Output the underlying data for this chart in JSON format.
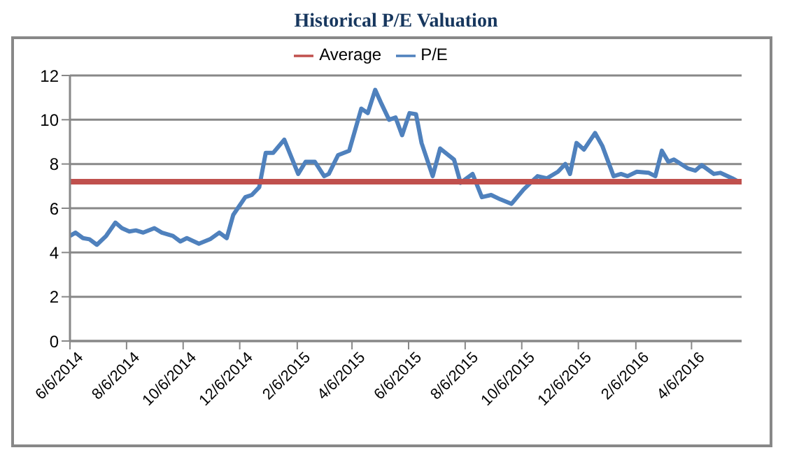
{
  "chart_data": {
    "type": "line",
    "title": "Historical P/E Valuation",
    "xlim": [
      "2014-06-06",
      "2016-05-30"
    ],
    "xticks": [
      {
        "value": "2014-06-06",
        "label": "6/6/2014"
      },
      {
        "value": "2014-08-06",
        "label": "8/6/2014"
      },
      {
        "value": "2014-10-06",
        "label": "10/6/2014"
      },
      {
        "value": "2014-12-06",
        "label": "12/6/2014"
      },
      {
        "value": "2015-02-06",
        "label": "2/6/2015"
      },
      {
        "value": "2015-04-06",
        "label": "4/6/2015"
      },
      {
        "value": "2015-06-06",
        "label": "6/6/2015"
      },
      {
        "value": "2015-08-06",
        "label": "8/6/2015"
      },
      {
        "value": "2015-10-06",
        "label": "10/6/2015"
      },
      {
        "value": "2015-12-06",
        "label": "12/6/2015"
      },
      {
        "value": "2016-02-06",
        "label": "2/6/2016"
      },
      {
        "value": "2016-04-06",
        "label": "4/6/2016"
      }
    ],
    "ylim": [
      0,
      12
    ],
    "yticks": [
      0,
      2,
      4,
      6,
      8,
      10,
      12
    ],
    "grid": "y",
    "legend": "top",
    "line_style": "solid",
    "marker": "none",
    "series": [
      {
        "name": "P/E",
        "color": "#4f81bd",
        "x": [
          "2014-06-06",
          "2014-06-12",
          "2014-06-20",
          "2014-06-27",
          "2014-07-05",
          "2014-07-15",
          "2014-07-25",
          "2014-08-01",
          "2014-08-09",
          "2014-08-16",
          "2014-08-24",
          "2014-09-05",
          "2014-09-13",
          "2014-09-25",
          "2014-10-03",
          "2014-10-10",
          "2014-10-23",
          "2014-11-04",
          "2014-11-14",
          "2014-11-22",
          "2014-11-29",
          "2014-12-12",
          "2014-12-19",
          "2014-12-27",
          "2015-01-03",
          "2015-01-11",
          "2015-01-23",
          "2015-02-07",
          "2015-02-15",
          "2015-02-25",
          "2015-03-07",
          "2015-03-12",
          "2015-03-22",
          "2015-04-03",
          "2015-04-16",
          "2015-04-23",
          "2015-05-01",
          "2015-05-08",
          "2015-05-16",
          "2015-05-23",
          "2015-05-30",
          "2015-06-07",
          "2015-06-14",
          "2015-06-20",
          "2015-07-02",
          "2015-07-10",
          "2015-07-25",
          "2015-08-01",
          "2015-08-14",
          "2015-08-24",
          "2015-09-03",
          "2015-09-13",
          "2015-09-25",
          "2015-10-08",
          "2015-10-23",
          "2015-11-02",
          "2015-11-14",
          "2015-11-22",
          "2015-11-27",
          "2015-12-04",
          "2015-12-12",
          "2015-12-24",
          "2016-01-01",
          "2016-01-13",
          "2016-01-21",
          "2016-01-28",
          "2016-02-07",
          "2016-02-20",
          "2016-02-27",
          "2016-03-05",
          "2016-03-12",
          "2016-03-18",
          "2016-04-02",
          "2016-04-10",
          "2016-04-17",
          "2016-04-30",
          "2016-05-07",
          "2016-05-20",
          "2016-05-29"
        ],
        "values": [
          4.75,
          4.9,
          4.65,
          4.6,
          4.35,
          4.75,
          5.35,
          5.1,
          4.95,
          5.0,
          4.9,
          5.1,
          4.9,
          4.75,
          4.5,
          4.65,
          4.4,
          4.6,
          4.9,
          4.65,
          5.7,
          6.5,
          6.6,
          6.95,
          8.5,
          8.5,
          9.1,
          7.55,
          8.1,
          8.1,
          7.45,
          7.55,
          8.4,
          8.6,
          10.5,
          10.3,
          11.35,
          10.7,
          10.0,
          10.1,
          9.3,
          10.3,
          10.25,
          8.95,
          7.45,
          8.7,
          8.2,
          7.15,
          7.55,
          6.5,
          6.6,
          6.4,
          6.2,
          6.85,
          7.45,
          7.35,
          7.65,
          8.0,
          7.55,
          8.95,
          8.65,
          9.4,
          8.8,
          7.45,
          7.55,
          7.45,
          7.65,
          7.6,
          7.45,
          8.6,
          8.1,
          8.2,
          7.8,
          7.7,
          7.95,
          7.55,
          7.6,
          7.35,
          7.15
        ]
      },
      {
        "name": "Average",
        "color": "#c0504d",
        "x": [
          "2014-06-06",
          "2016-05-30"
        ],
        "values": [
          7.2,
          7.2
        ]
      }
    ]
  }
}
